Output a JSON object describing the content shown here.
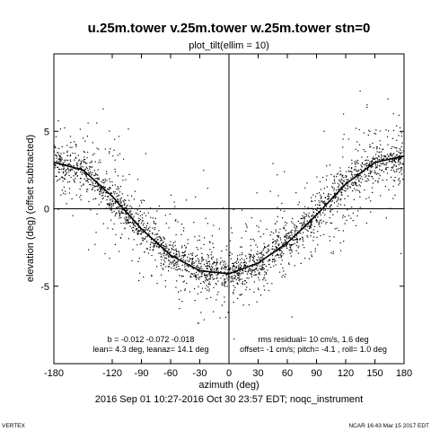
{
  "chart_data": {
    "type": "scatter",
    "title": "u.25m.tower v.25m.tower w.25m.tower stn=0",
    "subtitle": "plot_tilt(ellim = 10)",
    "xlabel": "azimuth (deg)",
    "ylabel": "elevation (deg)  (offset subtracted)",
    "xlim": [
      -180,
      180
    ],
    "ylim": [
      -10,
      10
    ],
    "x_ticks": [
      -180,
      -120,
      -90,
      -60,
      -30,
      0,
      30,
      60,
      90,
      120,
      150,
      180
    ],
    "y_ticks": [
      -5,
      0,
      5
    ],
    "zero_lines": true,
    "fit_curve": {
      "x": [
        -180,
        -150,
        -120,
        -90,
        -60,
        -30,
        0,
        30,
        60,
        90,
        120,
        150,
        180
      ],
      "y": [
        3.0,
        2.5,
        0.8,
        -1.3,
        -3.0,
        -4.0,
        -4.2,
        -3.5,
        -2.2,
        -0.4,
        1.6,
        3.0,
        3.4
      ]
    },
    "annotations": {
      "left": [
        "b = -0.012 -0.072 -0.018",
        "lean= 4.3 deg, leanaz= 14.1 deg"
      ],
      "right": [
        "rms residual= 10 cm/s, 1.6 deg",
        "offset= -1 cm/s; pitch= -4.1 , roll= 1.0 deg"
      ]
    },
    "date_range": "2016 Sep 01 10:27-2016 Oct 30 23:57 EDT; noqc_instrument"
  },
  "footer": {
    "left": "VERTEX",
    "right": "NCAR 16:43 Mar 15 2017 EDT"
  }
}
